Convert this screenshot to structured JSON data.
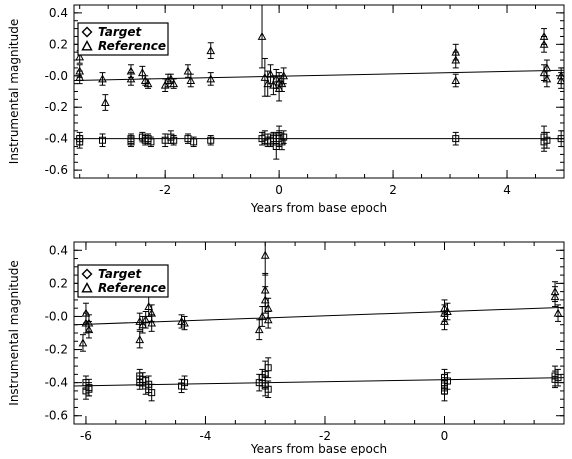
{
  "chart_data": [
    {
      "type": "scatter",
      "xlabel": "Years from base epoch",
      "ylabel": "Instrumental magnitude",
      "xlim": [
        -3.6,
        5.0
      ],
      "ylim": [
        -0.65,
        0.45
      ],
      "xticks": [
        -2,
        0,
        2,
        4
      ],
      "yticks": [
        0.4,
        0.2,
        -0.0,
        -0.2,
        -0.4,
        -0.6
      ],
      "ytick_labels": [
        "0.4",
        "0.2",
        "-0.0",
        "-0.2",
        "-0.4",
        "-0.6"
      ],
      "legend": {
        "placement": "top-left",
        "entries": [
          "Target",
          "Reference"
        ]
      },
      "series": [
        {
          "name": "Target",
          "marker": "square",
          "x": [
            -3.5,
            -3.5,
            -3.1,
            -2.6,
            -2.6,
            -2.4,
            -2.35,
            -2.3,
            -2.25,
            -2.0,
            -1.9,
            -1.85,
            -1.6,
            -1.5,
            -1.2,
            -0.3,
            -0.25,
            -0.2,
            -0.15,
            -0.1,
            -0.05,
            0.0,
            0.0,
            0.05,
            0.08,
            3.1,
            4.65,
            4.65,
            4.7,
            4.95
          ],
          "y": [
            -0.4,
            -0.42,
            -0.41,
            -0.4,
            -0.42,
            -0.39,
            -0.41,
            -0.4,
            -0.42,
            -0.41,
            -0.39,
            -0.41,
            -0.4,
            -0.42,
            -0.41,
            -0.4,
            -0.39,
            -0.42,
            -0.41,
            -0.4,
            -0.45,
            -0.38,
            -0.4,
            -0.42,
            -0.39,
            -0.4,
            -0.39,
            -0.42,
            -0.41,
            -0.4
          ],
          "err": [
            0.04,
            0.04,
            0.04,
            0.03,
            0.03,
            0.03,
            0.03,
            0.03,
            0.03,
            0.04,
            0.04,
            0.03,
            0.03,
            0.03,
            0.03,
            0.04,
            0.04,
            0.03,
            0.04,
            0.04,
            0.08,
            0.06,
            0.05,
            0.05,
            0.04,
            0.04,
            0.07,
            0.06,
            0.05,
            0.05
          ]
        },
        {
          "name": "Reference",
          "marker": "triangle",
          "x": [
            -3.5,
            -3.5,
            -3.5,
            -3.1,
            -3.05,
            -2.6,
            -2.6,
            -2.4,
            -2.35,
            -2.3,
            -2.0,
            -1.95,
            -1.9,
            -1.85,
            -1.6,
            -1.55,
            -1.2,
            -1.2,
            -0.3,
            -0.25,
            -0.2,
            -0.15,
            -0.1,
            -0.05,
            0.0,
            0.0,
            0.05,
            0.08,
            3.1,
            3.1,
            3.1,
            4.65,
            4.65,
            4.65,
            4.7,
            4.7,
            4.95,
            4.95
          ],
          "y": [
            0.12,
            0.03,
            -0.01,
            -0.02,
            -0.17,
            0.03,
            -0.02,
            0.02,
            -0.03,
            -0.05,
            -0.06,
            -0.03,
            -0.02,
            -0.05,
            0.03,
            -0.03,
            0.16,
            -0.02,
            0.25,
            -0.01,
            -0.05,
            0.01,
            -0.06,
            -0.02,
            -0.08,
            -0.04,
            -0.05,
            0.0,
            0.15,
            0.1,
            -0.03,
            0.25,
            0.2,
            0.02,
            -0.02,
            0.05,
            0.0,
            -0.03
          ],
          "err": [
            0.04,
            0.04,
            0.04,
            0.04,
            0.05,
            0.04,
            0.04,
            0.04,
            0.03,
            0.03,
            0.04,
            0.04,
            0.03,
            0.03,
            0.04,
            0.04,
            0.05,
            0.04,
            0.2,
            0.12,
            0.08,
            0.06,
            0.06,
            0.06,
            0.08,
            0.06,
            0.05,
            0.05,
            0.05,
            0.05,
            0.04,
            0.05,
            0.05,
            0.05,
            0.05,
            0.05,
            0.05,
            0.05
          ]
        }
      ],
      "fit_lines": [
        {
          "series": "Reference",
          "x": [
            -3.6,
            5.0
          ],
          "y": [
            -0.03,
            0.035
          ]
        },
        {
          "series": "Target",
          "x": [
            -3.6,
            5.0
          ],
          "y": [
            -0.4,
            -0.4
          ]
        }
      ]
    },
    {
      "type": "scatter",
      "xlabel": "Years from base epoch",
      "ylabel": "Instrumental magnitude",
      "xlim": [
        -6.2,
        2.0
      ],
      "ylim": [
        -0.65,
        0.45
      ],
      "xticks": [
        -6,
        -4,
        -2,
        0
      ],
      "yticks": [
        0.4,
        0.2,
        -0.0,
        -0.2,
        -0.4,
        -0.6
      ],
      "ytick_labels": [
        "0.4",
        "0.2",
        "-0.0",
        "-0.2",
        "-0.4",
        "-0.6"
      ],
      "legend": {
        "placement": "top-left",
        "entries": [
          "Target",
          "Reference"
        ]
      },
      "series": [
        {
          "name": "Target",
          "marker": "square",
          "x": [
            -6.0,
            -6.0,
            -5.95,
            -5.95,
            -5.1,
            -5.1,
            -5.05,
            -5.0,
            -4.95,
            -4.9,
            -4.4,
            -4.35,
            -3.1,
            -3.05,
            -3.0,
            -3.0,
            -2.95,
            -2.95,
            0.0,
            0.0,
            0.0,
            0.0,
            0.05,
            1.85,
            1.85,
            1.9
          ],
          "y": [
            -0.4,
            -0.45,
            -0.43,
            -0.44,
            -0.36,
            -0.4,
            -0.38,
            -0.42,
            -0.41,
            -0.46,
            -0.42,
            -0.4,
            -0.4,
            -0.37,
            -0.35,
            -0.42,
            -0.31,
            -0.44,
            -0.37,
            -0.4,
            -0.42,
            -0.45,
            -0.39,
            -0.36,
            -0.38,
            -0.37
          ],
          "err": [
            0.04,
            0.05,
            0.05,
            0.04,
            0.04,
            0.04,
            0.04,
            0.05,
            0.05,
            0.05,
            0.04,
            0.04,
            0.05,
            0.05,
            0.08,
            0.06,
            0.06,
            0.05,
            0.05,
            0.05,
            0.05,
            0.06,
            0.05,
            0.06,
            0.05,
            0.05
          ]
        },
        {
          "name": "Reference",
          "marker": "triangle",
          "x": [
            -6.05,
            -6.0,
            -6.0,
            -5.95,
            -5.95,
            -5.1,
            -5.1,
            -5.05,
            -5.0,
            -4.95,
            -4.9,
            -4.9,
            -4.4,
            -4.35,
            -3.1,
            -3.05,
            -3.0,
            -3.0,
            -3.0,
            -2.95,
            -2.95,
            0.0,
            0.0,
            0.0,
            0.05,
            1.85,
            1.85,
            1.9
          ],
          "y": [
            -0.16,
            -0.04,
            0.02,
            -0.04,
            -0.08,
            -0.03,
            -0.14,
            -0.05,
            -0.02,
            0.06,
            -0.04,
            0.02,
            -0.03,
            -0.04,
            -0.08,
            0.0,
            0.37,
            0.16,
            0.1,
            0.05,
            -0.02,
            0.05,
            0.02,
            -0.03,
            0.03,
            0.15,
            0.12,
            0.02
          ],
          "err": [
            0.05,
            0.06,
            0.06,
            0.05,
            0.05,
            0.05,
            0.05,
            0.05,
            0.05,
            0.06,
            0.05,
            0.05,
            0.04,
            0.04,
            0.06,
            0.06,
            0.12,
            0.1,
            0.08,
            0.06,
            0.05,
            0.05,
            0.05,
            0.05,
            0.05,
            0.06,
            0.06,
            0.05
          ]
        }
      ],
      "fit_lines": [
        {
          "series": "Reference",
          "x": [
            -6.2,
            2.0
          ],
          "y": [
            -0.05,
            0.055
          ]
        },
        {
          "series": "Target",
          "x": [
            -6.2,
            2.0
          ],
          "y": [
            -0.42,
            -0.37
          ]
        }
      ]
    }
  ]
}
